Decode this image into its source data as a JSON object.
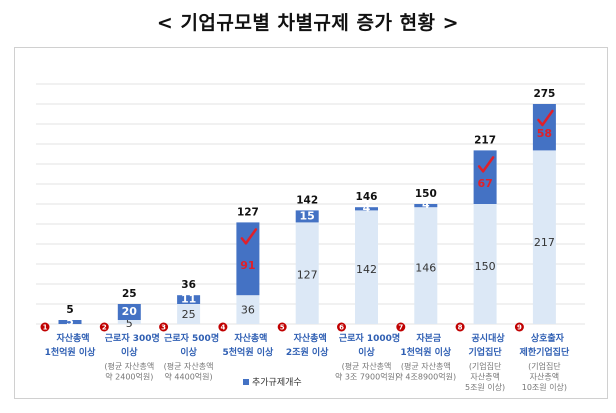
{
  "chart_data": {
    "type": "bar",
    "stacked": true,
    "title": "< 기업규모별 차별규제 증가 현황 >",
    "ylim": [
      0,
      300
    ],
    "grid": true,
    "legend_position": "bottom",
    "categories": [
      {
        "num": "1",
        "lines": [
          "자산총액",
          "1천억원 이상"
        ],
        "sub": []
      },
      {
        "num": "2",
        "lines": [
          "근로자 300명",
          "이상"
        ],
        "sub": [
          "(평균 자산총액",
          "약 2400억원)"
        ]
      },
      {
        "num": "3",
        "lines": [
          "근로자 500명",
          "이상"
        ],
        "sub": [
          "(평균 자산총액",
          "약 4400억원)"
        ]
      },
      {
        "num": "4",
        "lines": [
          "자산총액",
          "5천억원 이상"
        ],
        "sub": []
      },
      {
        "num": "5",
        "lines": [
          "자산총액",
          "2조원 이상"
        ],
        "sub": []
      },
      {
        "num": "6",
        "lines": [
          "근로자 1000명",
          "이상"
        ],
        "sub": [
          "(평균 자산총액",
          "약 3조 7900억원)"
        ]
      },
      {
        "num": "7",
        "lines": [
          "자본금",
          "1천억원 이상"
        ],
        "sub": [
          "(평균 자산총액",
          "약 4조8900억원)"
        ]
      },
      {
        "num": "8",
        "lines": [
          "공시대상",
          "기업집단"
        ],
        "sub": [
          "(기업집단",
          "자산총액",
          "5조원 이상)"
        ]
      },
      {
        "num": "9",
        "lines": [
          "상호출자",
          "제한기업집단"
        ],
        "sub": [
          "(기업집단",
          "자산총액",
          "10조원 이상)"
        ]
      }
    ],
    "series": [
      {
        "values": [
          0,
          5,
          25,
          36,
          127,
          142,
          146,
          150,
          217
        ],
        "color": "#dce8f6"
      },
      {
        "name": "추가규제개수",
        "values": [
          5,
          20,
          11,
          91,
          15,
          4,
          4,
          67,
          58
        ],
        "color": "#4472c4",
        "highlighted": [
          false,
          false,
          false,
          true,
          false,
          false,
          false,
          true,
          true
        ],
        "highlight_color": "#e0202a"
      }
    ],
    "totals": [
      5,
      25,
      36,
      127,
      142,
      146,
      150,
      217,
      275
    ]
  }
}
